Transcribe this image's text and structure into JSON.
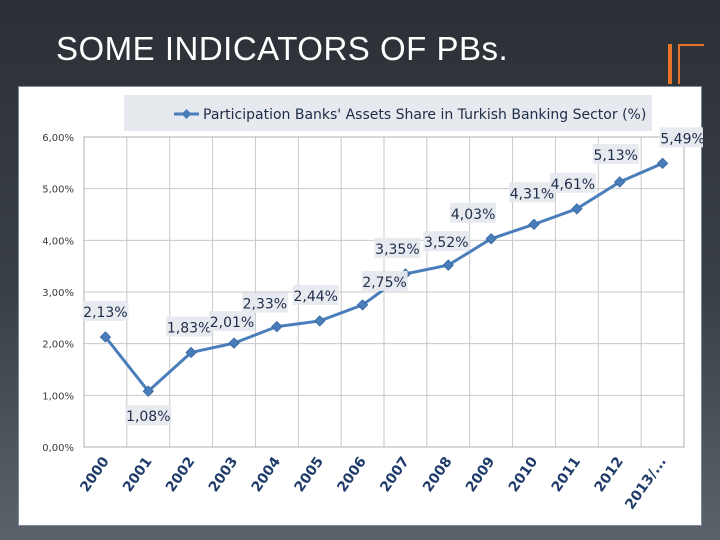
{
  "slide": {
    "title": "SOME INDICATORS OF PBs.",
    "accent_color": "#e8732a"
  },
  "chart_data": {
    "type": "line",
    "title": "",
    "xlabel": "",
    "ylabel": "",
    "x": [
      "2000",
      "2001",
      "2002",
      "2003",
      "2004",
      "2005",
      "2006",
      "2007",
      "2008",
      "2009",
      "2010",
      "2011",
      "2012",
      "2013/..."
    ],
    "series": [
      {
        "name": "Participation Banks' Assets Share in Turkish Banking Sector (%)",
        "values": [
          2.13,
          1.08,
          1.83,
          2.01,
          2.33,
          2.44,
          2.75,
          3.35,
          3.52,
          4.03,
          4.31,
          4.61,
          5.13,
          5.49
        ],
        "labels": [
          "2,13%",
          "1,08%",
          "1,83%",
          "2,01%",
          "2,33%",
          "2,44%",
          "2,75%",
          "3,35%",
          "3,52%",
          "4,03%",
          "4,31%",
          "4,61%",
          "5,13%",
          "5,49%"
        ],
        "color": "#4a7ebb"
      }
    ],
    "ylim": [
      0,
      6
    ],
    "yticks": [
      0,
      1,
      2,
      3,
      4,
      5,
      6
    ],
    "ytick_labels": [
      "0,00%",
      "1,00%",
      "2,00%",
      "3,00%",
      "4,00%",
      "5,00%",
      "6,00%"
    ],
    "grid": true,
    "legend": "top"
  }
}
